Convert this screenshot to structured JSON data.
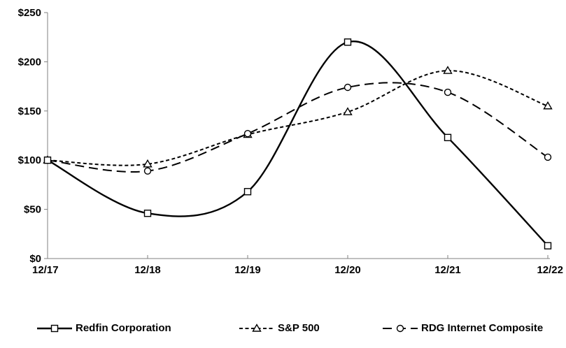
{
  "chart_data": {
    "type": "line",
    "categories": [
      "12/17",
      "12/18",
      "12/19",
      "12/20",
      "12/21",
      "12/22"
    ],
    "series": [
      {
        "name": "Redfin Corporation",
        "values": [
          100,
          46,
          68,
          220,
          123,
          13
        ],
        "line_style": "solid",
        "marker": "square"
      },
      {
        "name": "S&P 500",
        "values": [
          100,
          96,
          126,
          149,
          191,
          155
        ],
        "line_style": "short-dash",
        "marker": "triangle"
      },
      {
        "name": "RDG Internet Composite",
        "values": [
          100,
          89,
          127,
          174,
          169,
          103
        ],
        "line_style": "long-dash",
        "marker": "circle"
      }
    ],
    "y_axis": {
      "min": 0,
      "max": 250,
      "tick_step": 50,
      "tick_labels": [
        "$0",
        "$50",
        "$100",
        "$150",
        "$200",
        "$250"
      ]
    },
    "x_axis": {
      "tick_labels": [
        "12/17",
        "12/18",
        "12/19",
        "12/20",
        "12/21",
        "12/22"
      ]
    },
    "grid": false,
    "legend_position": "bottom",
    "series_color": "#000000",
    "marker_fill": "#ffffff",
    "axis_color": "#808080",
    "label_color": "#000000",
    "smooth_lines": true
  }
}
